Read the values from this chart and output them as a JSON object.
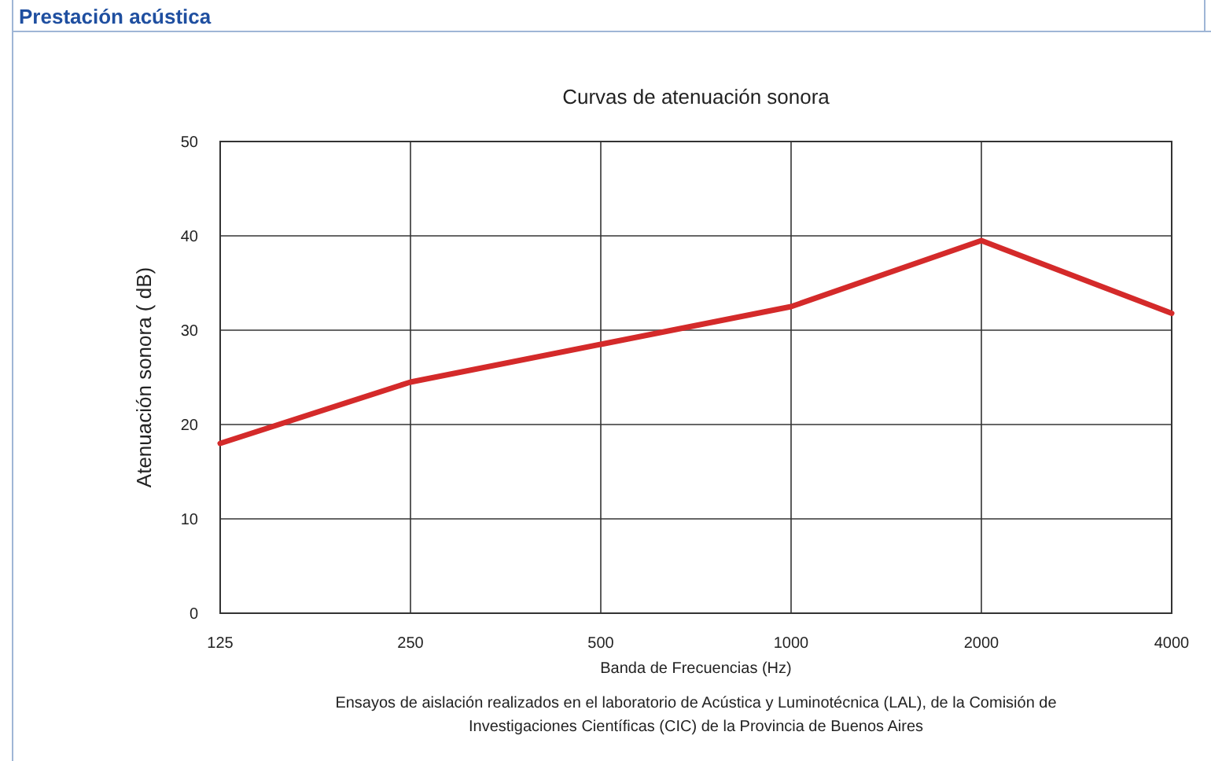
{
  "chart_data": {
    "type": "line",
    "title": "Prestación acústica",
    "subtitle": "Curvas de atenuación sonora",
    "xlabel": "Banda de Frecuencias (Hz)",
    "ylabel": "Atenuación sonora ( dB)",
    "categories": [
      "125",
      "250",
      "500",
      "1000",
      "2000",
      "4000"
    ],
    "series": [
      {
        "color": "#d42a2a",
        "values": [
          18,
          24.5,
          28.5,
          32.5,
          39.5,
          31.8
        ]
      }
    ],
    "ylim": [
      0,
      50
    ],
    "yticks": [
      0,
      10,
      20,
      30,
      40,
      50
    ],
    "grid": true,
    "marker": "none",
    "line_style": "solid",
    "annotations": [
      "Ensayos de aislación realizados en el laboratorio de Acústica y Luminotécnica (LAL), de la Comisión de Investigaciones Científicas (CIC) de la Provincia de Buenos Aires"
    ]
  }
}
